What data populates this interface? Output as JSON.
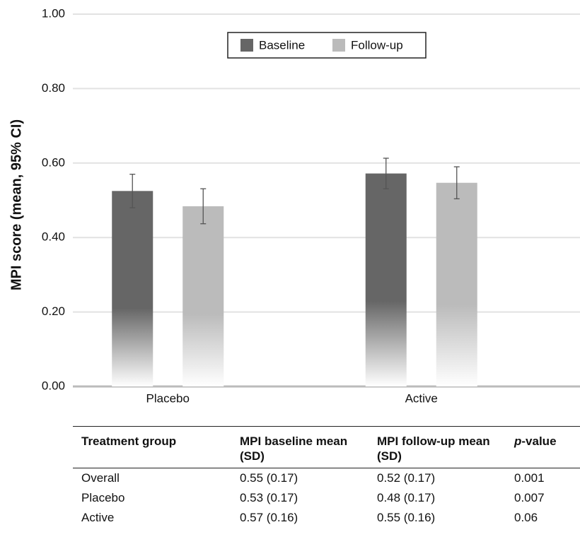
{
  "chart_data": {
    "type": "bar",
    "y_label": "MPI score (mean, 95% CI)",
    "categories": [
      "Placebo",
      "Active"
    ],
    "series": [
      {
        "name": "Baseline",
        "color": "#666666",
        "values": [
          0.525,
          0.572
        ],
        "errors": [
          0.045,
          0.041
        ]
      },
      {
        "name": "Follow-up",
        "color": "#bbbbbb",
        "values": [
          0.484,
          0.547
        ],
        "errors": [
          0.047,
          0.043
        ]
      }
    ],
    "ylim": [
      0,
      1
    ],
    "yticks": [
      {
        "value": 0,
        "label": "0.00"
      },
      {
        "value": 0.2,
        "label": "0.20"
      },
      {
        "value": 0.4,
        "label": "0.40"
      },
      {
        "value": 0.6,
        "label": "0.60"
      },
      {
        "value": 0.8,
        "label": "0.80"
      },
      {
        "value": 1,
        "label": "1.00"
      }
    ],
    "grid": true,
    "legend": "top"
  },
  "table": {
    "header": [
      "Treatment group",
      "MPI baseline mean (SD)",
      "MPI follow-up mean (SD)",
      [
        "p",
        "-value"
      ]
    ],
    "rows": [
      [
        "Overall",
        "0.55 (0.17)",
        "0.52 (0.17)",
        "0.001"
      ],
      [
        "Placebo",
        "0.53 (0.17)",
        "0.48 (0.17)",
        "0.007"
      ],
      [
        "Active",
        "0.57 (0.16)",
        "0.55 (0.16)",
        "0.06"
      ]
    ]
  }
}
